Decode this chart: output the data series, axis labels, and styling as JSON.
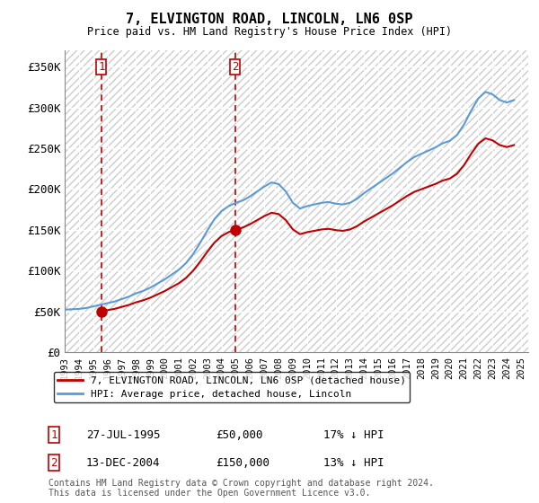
{
  "title": "7, ELVINGTON ROAD, LINCOLN, LN6 0SP",
  "subtitle": "Price paid vs. HM Land Registry's House Price Index (HPI)",
  "ylim": [
    0,
    370000
  ],
  "yticks": [
    0,
    50000,
    100000,
    150000,
    200000,
    250000,
    300000,
    350000
  ],
  "ytick_labels": [
    "£0",
    "£50K",
    "£100K",
    "£150K",
    "£200K",
    "£250K",
    "£300K",
    "£350K"
  ],
  "hpi_color": "#5b9bd5",
  "price_color": "#c00000",
  "marker_color": "#c00000",
  "vline_color": "#c00000",
  "sale1_date_num": 1995.57,
  "sale1_price": 50000,
  "sale1_label": "1",
  "sale2_date_num": 2004.95,
  "sale2_price": 150000,
  "sale2_label": "2",
  "legend_line1": "7, ELVINGTON ROAD, LINCOLN, LN6 0SP (detached house)",
  "legend_line2": "HPI: Average price, detached house, Lincoln",
  "footnote": "Contains HM Land Registry data © Crown copyright and database right 2024.\nThis data is licensed under the Open Government Licence v3.0.",
  "xmin": 1993,
  "xmax": 2025.5
}
